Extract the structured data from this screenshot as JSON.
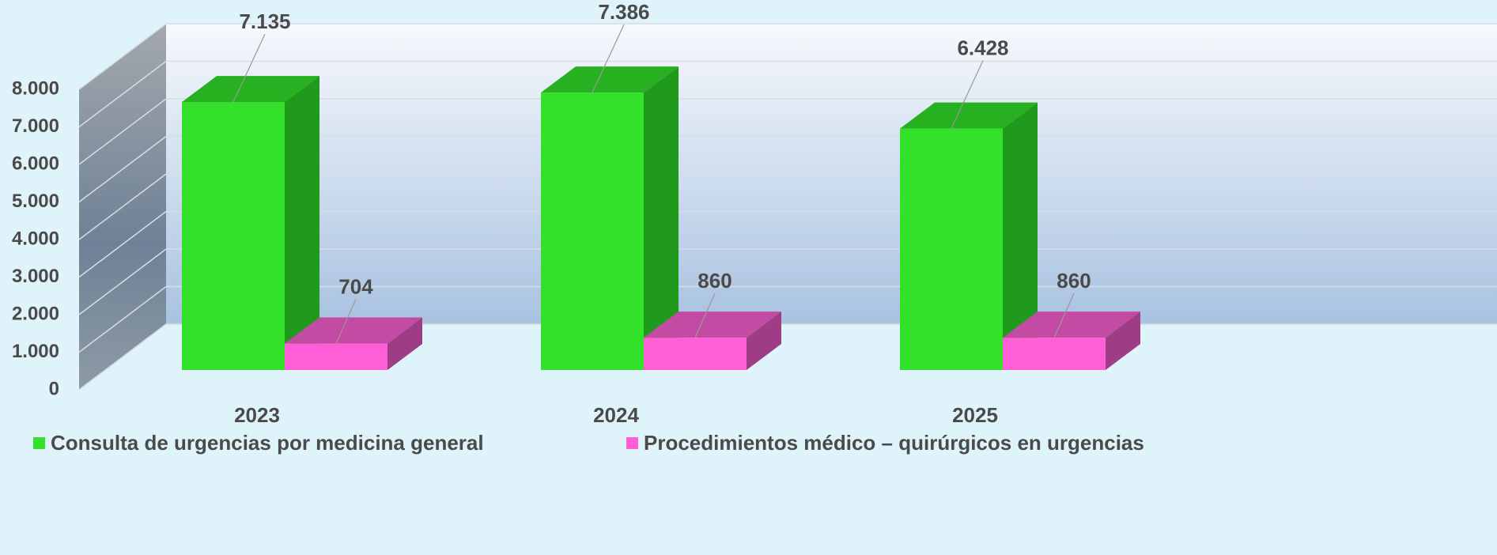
{
  "chart_data": {
    "type": "bar3d",
    "categories": [
      "2023",
      "2024",
      "2025"
    ],
    "series": [
      {
        "name": "Consulta de urgencias por medicina general",
        "color": "#33e02a",
        "values": [
          7135,
          7386,
          6428
        ],
        "value_labels": [
          "7.135",
          "7.386",
          "6.428"
        ]
      },
      {
        "name": "Procedimientos médico – quirúrgicos en urgencias",
        "color": "#ff5fd6",
        "values": [
          704,
          860,
          860
        ],
        "value_labels": [
          "704",
          "860",
          "860"
        ]
      }
    ],
    "ylim": [
      0,
      8000
    ],
    "yticks": [
      0,
      {
        "value": 1000,
        "label": "1.000"
      },
      {
        "value": 2000,
        "label": "2.000"
      },
      {
        "value": 3000,
        "label": "3.000"
      },
      {
        "value": 4000,
        "label": "4.000"
      },
      {
        "value": 5000,
        "label": "5.000"
      },
      {
        "value": 6000,
        "label": "6.000"
      },
      {
        "value": 7000,
        "label": "7.000"
      },
      {
        "value": 8000,
        "label": "8.000"
      }
    ],
    "grid": true,
    "legend": "bottom"
  }
}
